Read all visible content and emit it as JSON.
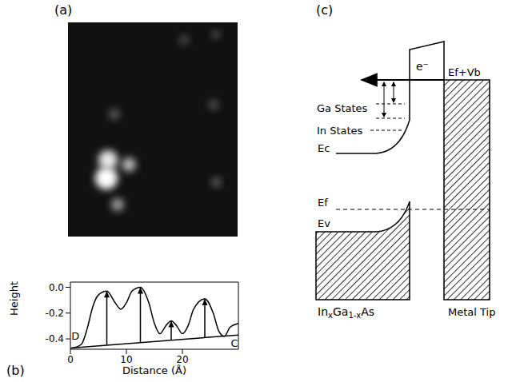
{
  "panel_labels": [
    "(a)",
    "(b)",
    "(c)"
  ],
  "chart_data": {
    "type": "line",
    "x": [
      0.5,
      2,
      3,
      4,
      5,
      6.5,
      8,
      9,
      10,
      11,
      12.5,
      14,
      15,
      16,
      17,
      18,
      19,
      20,
      21,
      22,
      24,
      25.5,
      26.5,
      27.5,
      28.5,
      30
    ],
    "values": [
      -0.47,
      -0.44,
      -0.32,
      -0.15,
      -0.06,
      -0.03,
      -0.12,
      -0.17,
      -0.12,
      -0.03,
      0.0,
      -0.12,
      -0.28,
      -0.36,
      -0.3,
      -0.26,
      -0.3,
      -0.36,
      -0.3,
      -0.17,
      -0.09,
      -0.2,
      -0.34,
      -0.38,
      -0.31,
      -0.28
    ],
    "color": "#000000",
    "xlim": [
      0,
      30
    ],
    "ylim": [
      -0.48,
      0.04
    ],
    "xticks": [
      0,
      10,
      20
    ],
    "yticks": [
      {
        "value": 0,
        "label": "0.0"
      },
      -0.2,
      -0.4
    ],
    "x_label": "Distance (Å)",
    "y_label": "Height",
    "annotations": [
      {
        "text": "D",
        "x": 0.9,
        "y": -0.38
      },
      {
        "text": "C",
        "x": 29.3,
        "y": -0.43
      }
    ],
    "baseline": {
      "x": [
        0,
        30
      ],
      "y": [
        -0.47,
        -0.37
      ]
    },
    "arrows_x": [
      6.5,
      12.5,
      18,
      24
    ],
    "grid": false
  },
  "diagram": {
    "semiconductor": "InxGa1-xAs",
    "tip": "Metal Tip",
    "electron": "e⁻",
    "tip_level": "Ef+Vb",
    "ga_states": "Ga States",
    "in_states": "In States",
    "conduction_band": "Ec",
    "fermi_level": "Ef",
    "valence_band": "Ev"
  }
}
